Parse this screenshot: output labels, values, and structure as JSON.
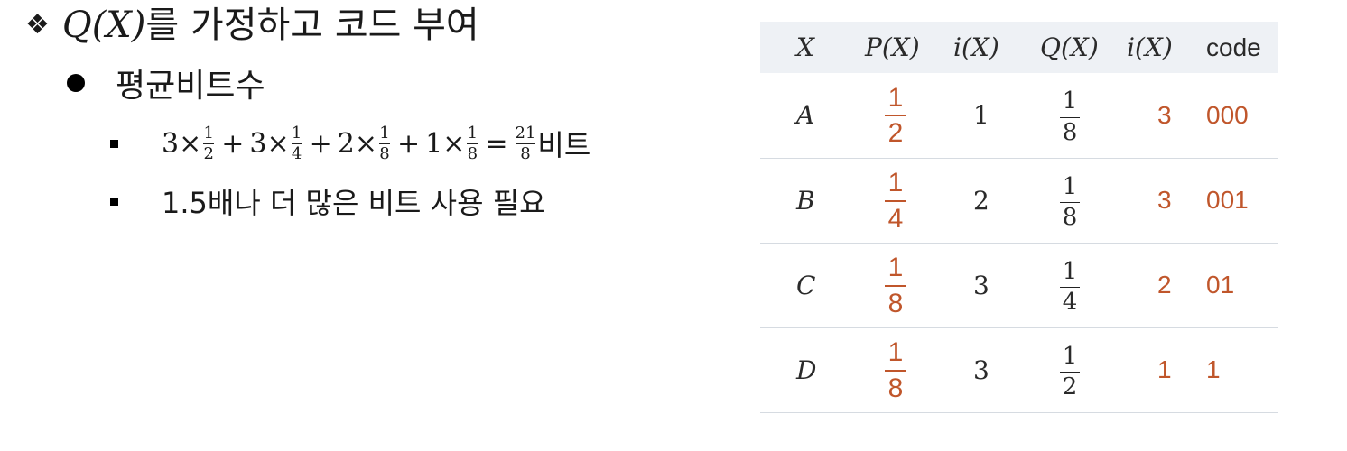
{
  "slide": {
    "heading_math": "Q(X)",
    "heading_text": "를 가정하고 코드 부여",
    "subheading": "평균비트수",
    "bullet1": {
      "terms": [
        {
          "coef": "3",
          "num": "1",
          "den": "2"
        },
        {
          "coef": "3",
          "num": "1",
          "den": "4"
        },
        {
          "coef": "2",
          "num": "1",
          "den": "8"
        },
        {
          "coef": "1",
          "num": "1",
          "den": "8"
        }
      ],
      "times": "×",
      "plus": "+",
      "equals": "=",
      "result_num": "21",
      "result_den": "8",
      "unit": "비트"
    },
    "bullet2": "1.5배나 더 많은 비트 사용 필요"
  },
  "table": {
    "headers": [
      "X",
      "P(X)",
      "i(X)",
      "Q(X)",
      "i(X)",
      "code"
    ],
    "rows": [
      {
        "x": "A",
        "p_num": "1",
        "p_den": "2",
        "i": "1",
        "q_num": "1",
        "q_den": "8",
        "iq": "3",
        "code": "000"
      },
      {
        "x": "B",
        "p_num": "1",
        "p_den": "4",
        "i": "2",
        "q_num": "1",
        "q_den": "8",
        "iq": "3",
        "code": "001"
      },
      {
        "x": "C",
        "p_num": "1",
        "p_den": "8",
        "i": "3",
        "q_num": "1",
        "q_den": "4",
        "iq": "2",
        "code": "01"
      },
      {
        "x": "D",
        "p_num": "1",
        "p_den": "8",
        "i": "3",
        "q_num": "1",
        "q_den": "2",
        "iq": "1",
        "code": "1"
      }
    ]
  },
  "colors": {
    "accent": "#c0562b",
    "header_bg": "#eef1f5",
    "rule": "#d6dbe1"
  }
}
